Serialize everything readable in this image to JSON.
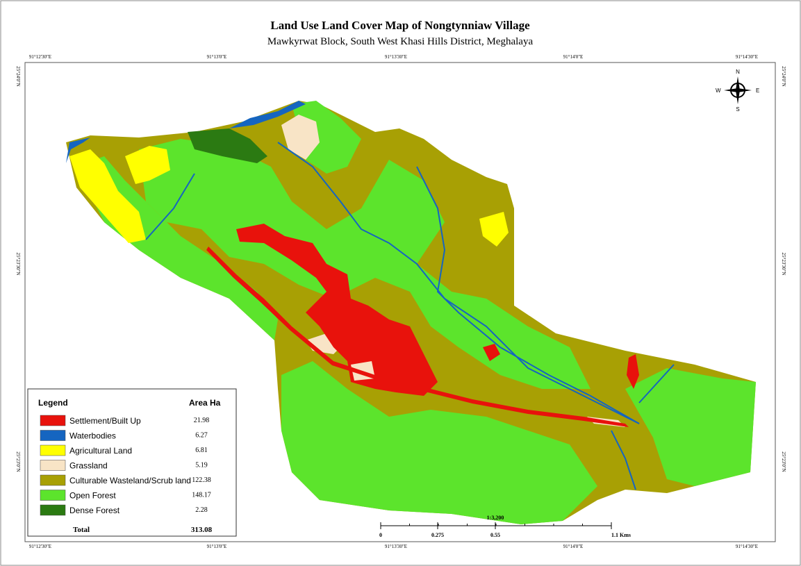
{
  "header": {
    "title": "Land Use Land Cover Map of Nongtynniaw Village",
    "subtitle": "Mawkyrwat Block, South West Khasi Hills District, Meghalaya"
  },
  "graticule": {
    "top": [
      "91°12'30\"E",
      "91°13'0\"E",
      "91°13'30\"E",
      "91°14'0\"E",
      "91°14'30\"E"
    ],
    "bottom": [
      "91°12'30\"E",
      "91°13'0\"E",
      "91°13'30\"E",
      "91°14'0\"E",
      "91°14'30\"E"
    ],
    "left": [
      "25°24'0\"N",
      "25°23'30\"N",
      "25°23'0\"N"
    ],
    "right": [
      "25°24'0\"N",
      "25°23'30\"N",
      "25°23'0\"N"
    ]
  },
  "compass": {
    "n": "N",
    "e": "E",
    "s": "S",
    "w": "W"
  },
  "scale": {
    "ratio": "1:3,200",
    "labels": [
      "0",
      "0.275",
      "0.55",
      "1.1 Kms"
    ]
  },
  "legend": {
    "title": "Legend",
    "area_header": "Area Ha",
    "items": [
      {
        "label": "Settlement/Built Up",
        "area": 21.98,
        "color": "#e8120c"
      },
      {
        "label": "Waterbodies",
        "area": 6.27,
        "color": "#1565c0"
      },
      {
        "label": "Agricultural Land",
        "area": 6.81,
        "color": "#ffff00"
      },
      {
        "label": "Grassland",
        "area": 5.19,
        "color": "#f8e4c6"
      },
      {
        "label": "Culturable Wasteland/Scrub land",
        "area": 122.38,
        "color": "#a8a004"
      },
      {
        "label": "Open Forest",
        "area": 148.17,
        "color": "#5ce42c"
      },
      {
        "label": "Dense Forest",
        "area": 2.28,
        "color": "#2b7a12"
      }
    ],
    "total_label": "Total",
    "total": 313.08
  }
}
